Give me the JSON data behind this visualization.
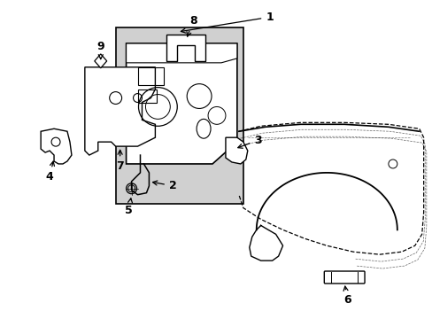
{
  "background_color": "#ffffff",
  "figure_width": 4.89,
  "figure_height": 3.6,
  "dpi": 100,
  "line_color": "#000000",
  "shade_color": "#d0d0d0"
}
